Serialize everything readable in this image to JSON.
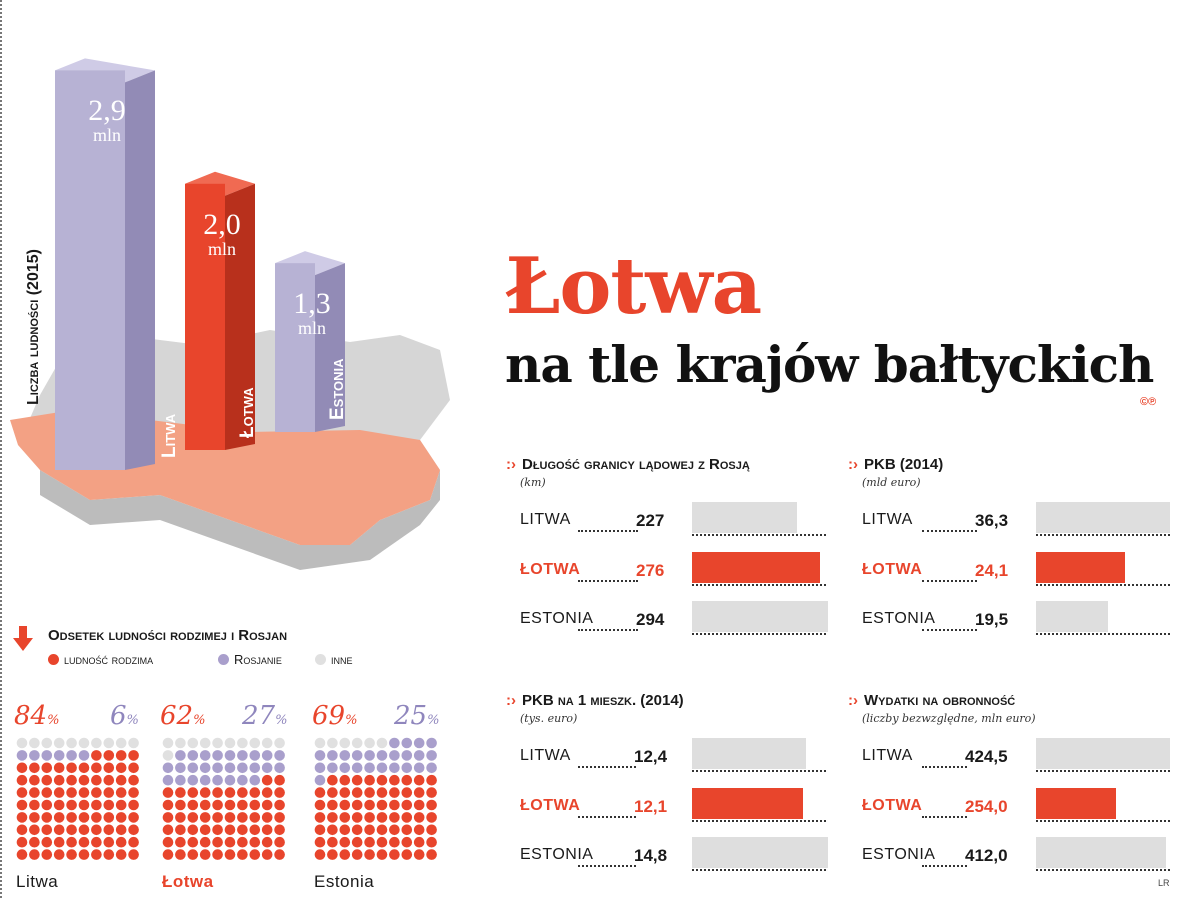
{
  "title": "Łotwa",
  "subtitle": "na tle krajów bałtyckich",
  "credit": "©℗",
  "signature": "LR",
  "colors": {
    "accent": "#e8452c",
    "lilac": "#b7b2d4",
    "gray": "#dedede",
    "map": "#d6d6d6",
    "map_highlight": "#f3a184"
  },
  "chart_data": [
    {
      "type": "bar",
      "ylabel": "Liczba ludności (2015)",
      "categories": [
        "Litwa",
        "Łotwa",
        "Estonia"
      ],
      "values": [
        2.9,
        2.0,
        1.3
      ],
      "value_labels": [
        "2,9",
        "2,0",
        "1,3"
      ],
      "unit": "mln",
      "highlight": "Łotwa"
    },
    {
      "type": "bar",
      "title": "Długość granicy lądowej z Rosją",
      "subtitle": "(km)",
      "categories": [
        "LITWA",
        "ŁOTWA",
        "ESTONIA"
      ],
      "values": [
        227,
        276,
        294
      ],
      "value_labels": [
        "227",
        "276",
        "294"
      ],
      "highlight": "ŁOTWA"
    },
    {
      "type": "bar",
      "title": "PKB (2014)",
      "subtitle": "(mld euro)",
      "categories": [
        "LITWA",
        "ŁOTWA",
        "ESTONIA"
      ],
      "values": [
        36.3,
        24.1,
        19.5
      ],
      "value_labels": [
        "36,3",
        "24,1",
        "19,5"
      ],
      "highlight": "ŁOTWA"
    },
    {
      "type": "bar",
      "title": "PKB na 1 mieszk. (2014)",
      "subtitle": "(tys. euro)",
      "categories": [
        "LITWA",
        "ŁOTWA",
        "ESTONIA"
      ],
      "values": [
        12.4,
        12.1,
        14.8
      ],
      "value_labels": [
        "12,4",
        "12,1",
        "14,8"
      ],
      "highlight": "ŁOTWA"
    },
    {
      "type": "bar",
      "title": "Wydatki na obronność",
      "subtitle": "(liczby bezwzględne, mln euro)",
      "categories": [
        "LITWA",
        "ŁOTWA",
        "ESTONIA"
      ],
      "values": [
        424.5,
        254.0,
        412.0
      ],
      "value_labels": [
        "424,5",
        "254,0",
        "412,0"
      ],
      "highlight": "ŁOTWA"
    },
    {
      "type": "waffle",
      "title": "Odsetek ludności rodzimej i Rosjan",
      "legend": [
        "ludność rodzima",
        "Rosjanie",
        "inne"
      ],
      "countries": [
        {
          "name": "Litwa",
          "native": 84,
          "russian": 6,
          "native_label": "84%",
          "russian_label": "6%"
        },
        {
          "name": "Łotwa",
          "native": 62,
          "russian": 27,
          "native_label": "62%",
          "russian_label": "27%"
        },
        {
          "name": "Estonia",
          "native": 69,
          "russian": 25,
          "native_label": "69%",
          "russian_label": "25%"
        }
      ],
      "highlight": "Łotwa"
    }
  ]
}
